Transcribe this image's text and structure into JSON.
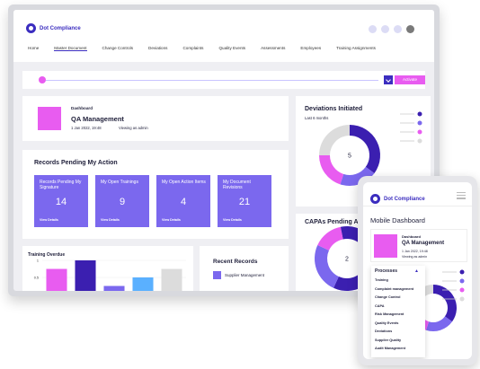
{
  "app": {
    "name": "Dot Compliance"
  },
  "nav": {
    "items": [
      "Home",
      "Master Document",
      "Change Controls",
      "Deviations",
      "Complaints",
      "Quality Events",
      "Assessments",
      "Employees",
      "Training Assignments"
    ]
  },
  "toolbar": {
    "action_label": "Activate"
  },
  "dashboard_card": {
    "label": "Dashboard",
    "title": "QA Management",
    "date": "1 Jan 2022, 19:48",
    "viewing": "Viewing as admin"
  },
  "pending": {
    "title": "Records Pending My Action",
    "tiles": [
      {
        "label": "Records Pending My Signature",
        "count": "14",
        "link": "View Details"
      },
      {
        "label": "My Open Trainings",
        "count": "9",
        "link": "View Details"
      },
      {
        "label": "My Open Action Items",
        "count": "4",
        "link": "View Details"
      },
      {
        "label": "My Document Revisions",
        "count": "21",
        "link": "View Details"
      }
    ]
  },
  "training": {
    "title": "Training Overdue"
  },
  "recent": {
    "title": "Recent Records",
    "items": [
      "Supplier Management"
    ]
  },
  "deviations": {
    "title": "Deviations Initiated",
    "subtitle": "Last 6 months",
    "center_value": "5"
  },
  "capas": {
    "title": "CAPAs Pending Approval",
    "center_value": "2"
  },
  "mobile": {
    "title": "Mobile Dashboard",
    "dash_label": "Dashboard",
    "dash_title": "QA Management",
    "dash_date": "1 Jan 2022, 19:48",
    "dash_viewing": "Viewing as admin",
    "dropdown": {
      "header": "Processes",
      "items": [
        "Training",
        "Complaint management",
        "Change Control",
        "CAPA",
        "Risk Management",
        "Quality Events",
        "Deviations",
        "Supplier Quality",
        "Audit Management"
      ]
    }
  },
  "chart_data": [
    {
      "type": "bar",
      "title": "Training Overdue",
      "categories": [
        "1",
        "2",
        "3",
        "4",
        "5"
      ],
      "values": [
        0.75,
        1.0,
        0.25,
        0.5,
        0.75
      ],
      "colors": [
        "#e85cf0",
        "#3b1fb0",
        "#7b68ee",
        "#5ab0ff",
        "#dcdcdc"
      ],
      "ylim": [
        0,
        1
      ],
      "yticks": [
        "1",
        "0.5",
        "0"
      ]
    },
    {
      "type": "pie",
      "title": "Deviations Initiated",
      "values": [
        35,
        20,
        20,
        25
      ],
      "colors": [
        "#3b1fb0",
        "#7b68ee",
        "#e85cf0",
        "#dcdcdc"
      ],
      "center": "5"
    },
    {
      "type": "pie",
      "title": "CAPAs Pending Approval",
      "values": [
        60,
        25,
        15
      ],
      "colors": [
        "#3b1fb0",
        "#7b68ee",
        "#e85cf0"
      ],
      "center": "2"
    }
  ],
  "colors": {
    "brand": "#3b2dbf",
    "accent": "#e85cf0",
    "tile": "#7b68ee"
  }
}
